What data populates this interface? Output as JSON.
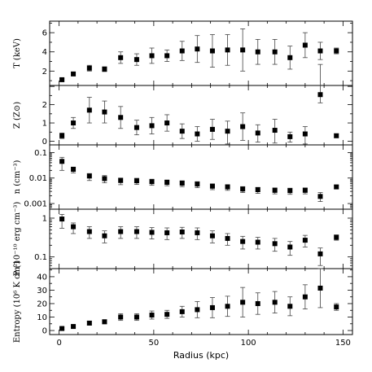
{
  "chart_data": [
    {
      "type": "scatter",
      "ylabel": "T (keV)",
      "yscale": "linear",
      "ylim": [
        0.5,
        7.2
      ],
      "yticks": [
        2,
        4,
        6
      ],
      "ytick_labels": [
        "2",
        "4",
        "6"
      ],
      "xlim": [
        -5,
        155
      ],
      "points": [
        {
          "x": 1.5,
          "y": 1.1,
          "err": [
            0.1,
            0.1
          ]
        },
        {
          "x": 7.5,
          "y": 1.7,
          "err": [
            0.15,
            0.15
          ]
        },
        {
          "x": 16,
          "y": 2.3,
          "err": [
            0.3,
            0.3
          ]
        },
        {
          "x": 24,
          "y": 2.2,
          "err": [
            0.25,
            0.25
          ]
        },
        {
          "x": 32.5,
          "y": 3.4,
          "err": [
            0.6,
            0.6
          ]
        },
        {
          "x": 41,
          "y": 3.2,
          "err": [
            0.6,
            0.6
          ]
        },
        {
          "x": 49,
          "y": 3.6,
          "err": [
            0.8,
            0.8
          ]
        },
        {
          "x": 57,
          "y": 3.6,
          "err": [
            0.6,
            0.6
          ]
        },
        {
          "x": 65,
          "y": 4.1,
          "err": [
            1.0,
            1.0
          ]
        },
        {
          "x": 73,
          "y": 4.3,
          "err": [
            1.4,
            1.4
          ]
        },
        {
          "x": 81,
          "y": 4.1,
          "err": [
            1.7,
            1.7
          ]
        },
        {
          "x": 89,
          "y": 4.2,
          "err": [
            1.6,
            1.6
          ]
        },
        {
          "x": 97,
          "y": 4.2,
          "err": [
            2.2,
            2.2
          ]
        },
        {
          "x": 105,
          "y": 4.0,
          "err": [
            1.3,
            1.3
          ]
        },
        {
          "x": 114,
          "y": 4.0,
          "err": [
            1.3,
            1.3
          ]
        },
        {
          "x": 122,
          "y": 3.4,
          "err": [
            1.2,
            1.2
          ]
        },
        {
          "x": 130,
          "y": 4.7,
          "err": [
            1.3,
            1.3
          ]
        },
        {
          "x": 138,
          "y": 4.1,
          "err": [
            0.9,
            0.9
          ]
        },
        {
          "x": 146.5,
          "y": 4.1,
          "err": [
            0.3,
            0.3
          ]
        }
      ]
    },
    {
      "type": "scatter",
      "ylabel": "Z (Z⊙)",
      "yscale": "linear",
      "ylim": [
        -0.2,
        3.05
      ],
      "yticks": [
        0,
        1,
        2
      ],
      "ytick_labels": [
        "0",
        "1",
        "2"
      ],
      "xlim": [
        -5,
        155
      ],
      "points": [
        {
          "x": 1.5,
          "y": 0.3,
          "err": [
            0.15,
            0.15
          ]
        },
        {
          "x": 7.5,
          "y": 1.0,
          "err": [
            0.3,
            0.3
          ]
        },
        {
          "x": 16,
          "y": 1.7,
          "err": [
            0.7,
            0.7
          ]
        },
        {
          "x": 24,
          "y": 1.6,
          "err": [
            0.6,
            0.6
          ]
        },
        {
          "x": 32.5,
          "y": 1.3,
          "err": [
            0.6,
            0.6
          ]
        },
        {
          "x": 41,
          "y": 0.75,
          "err": [
            0.4,
            0.4
          ]
        },
        {
          "x": 49,
          "y": 0.85,
          "err": [
            0.45,
            0.45
          ]
        },
        {
          "x": 57,
          "y": 1.0,
          "err": [
            0.45,
            0.45
          ]
        },
        {
          "x": 65,
          "y": 0.55,
          "err": [
            0.4,
            0.4
          ]
        },
        {
          "x": 73,
          "y": 0.4,
          "err": [
            0.4,
            0.4
          ]
        },
        {
          "x": 81,
          "y": 0.65,
          "err": [
            0.55,
            0.55
          ]
        },
        {
          "x": 89,
          "y": 0.55,
          "err": [
            0.7,
            0.55
          ]
        },
        {
          "x": 97,
          "y": 0.8,
          "err": [
            0.75,
            0.75
          ]
        },
        {
          "x": 105,
          "y": 0.45,
          "err": [
            0.5,
            0.45
          ]
        },
        {
          "x": 114,
          "y": 0.6,
          "err": [
            0.7,
            0.6
          ]
        },
        {
          "x": 122,
          "y": 0.25,
          "err": [
            0.3,
            0.25
          ]
        },
        {
          "x": 130,
          "y": 0.4,
          "err": [
            0.55,
            0.4
          ]
        },
        {
          "x": 138,
          "y": 2.55,
          "err": [
            0.45,
            1.65
          ]
        },
        {
          "x": 146.5,
          "y": 0.3,
          "err": [
            0.1,
            0.1
          ]
        }
      ]
    },
    {
      "type": "scatter",
      "ylabel": "n (cm⁻³)",
      "yscale": "log",
      "ylim": [
        0.0006,
        0.2
      ],
      "yticks": [
        0.001,
        0.01,
        0.1
      ],
      "ytick_labels": [
        "0.001",
        "0.01",
        "0.1"
      ],
      "xlim": [
        -5,
        155
      ],
      "points": [
        {
          "x": 1.5,
          "y": 0.045,
          "err": [
            0.025,
            0.02
          ]
        },
        {
          "x": 7.5,
          "y": 0.022,
          "err": [
            0.006,
            0.005
          ]
        },
        {
          "x": 16,
          "y": 0.012,
          "err": [
            0.004,
            0.003
          ]
        },
        {
          "x": 24,
          "y": 0.0095,
          "err": [
            0.003,
            0.003
          ]
        },
        {
          "x": 32.5,
          "y": 0.008,
          "err": [
            0.0025,
            0.002
          ]
        },
        {
          "x": 41,
          "y": 0.0078,
          "err": [
            0.0022,
            0.002
          ]
        },
        {
          "x": 49,
          "y": 0.0072,
          "err": [
            0.002,
            0.0018
          ]
        },
        {
          "x": 57,
          "y": 0.0068,
          "err": [
            0.0018,
            0.0016
          ]
        },
        {
          "x": 65,
          "y": 0.0063,
          "err": [
            0.0017,
            0.0015
          ]
        },
        {
          "x": 73,
          "y": 0.0058,
          "err": [
            0.0016,
            0.0014
          ]
        },
        {
          "x": 81,
          "y": 0.0048,
          "err": [
            0.0013,
            0.0011
          ]
        },
        {
          "x": 89,
          "y": 0.0045,
          "err": [
            0.0012,
            0.001
          ]
        },
        {
          "x": 97,
          "y": 0.0037,
          "err": [
            0.001,
            0.0009
          ]
        },
        {
          "x": 105,
          "y": 0.0035,
          "err": [
            0.001,
            0.0008
          ]
        },
        {
          "x": 114,
          "y": 0.0033,
          "err": [
            0.0009,
            0.0008
          ]
        },
        {
          "x": 122,
          "y": 0.0032,
          "err": [
            0.0009,
            0.0008
          ]
        },
        {
          "x": 130,
          "y": 0.0033,
          "err": [
            0.0009,
            0.0008
          ]
        },
        {
          "x": 138,
          "y": 0.0019,
          "err": [
            0.0007,
            0.0008
          ]
        },
        {
          "x": 146.5,
          "y": 0.0045,
          "err": [
            0.0007,
            0.0006
          ]
        }
      ]
    },
    {
      "type": "scatter",
      "ylabel": "P (10⁻¹⁰ erg cm⁻³)",
      "yscale": "log",
      "ylim": [
        0.05,
        1.7
      ],
      "yticks": [
        0.1,
        1
      ],
      "ytick_labels": [
        "0.1",
        "1"
      ],
      "xlim": [
        -5,
        155
      ],
      "points": [
        {
          "x": 1.5,
          "y": 0.95,
          "err": [
            0.4,
            0.3
          ]
        },
        {
          "x": 7.5,
          "y": 0.6,
          "err": [
            0.2,
            0.15
          ]
        },
        {
          "x": 16,
          "y": 0.45,
          "err": [
            0.15,
            0.15
          ]
        },
        {
          "x": 24,
          "y": 0.35,
          "err": [
            0.12,
            0.12
          ]
        },
        {
          "x": 32.5,
          "y": 0.45,
          "err": [
            0.15,
            0.15
          ]
        },
        {
          "x": 41,
          "y": 0.45,
          "err": [
            0.15,
            0.15
          ]
        },
        {
          "x": 49,
          "y": 0.43,
          "err": [
            0.14,
            0.14
          ]
        },
        {
          "x": 57,
          "y": 0.42,
          "err": [
            0.14,
            0.14
          ]
        },
        {
          "x": 65,
          "y": 0.44,
          "err": [
            0.14,
            0.14
          ]
        },
        {
          "x": 73,
          "y": 0.42,
          "err": [
            0.14,
            0.14
          ]
        },
        {
          "x": 81,
          "y": 0.35,
          "err": [
            0.12,
            0.12
          ]
        },
        {
          "x": 89,
          "y": 0.3,
          "err": [
            0.1,
            0.1
          ]
        },
        {
          "x": 97,
          "y": 0.25,
          "err": [
            0.09,
            0.09
          ]
        },
        {
          "x": 105,
          "y": 0.24,
          "err": [
            0.08,
            0.08
          ]
        },
        {
          "x": 114,
          "y": 0.22,
          "err": [
            0.08,
            0.08
          ]
        },
        {
          "x": 122,
          "y": 0.18,
          "err": [
            0.07,
            0.07
          ]
        },
        {
          "x": 130,
          "y": 0.27,
          "err": [
            0.09,
            0.09
          ]
        },
        {
          "x": 138,
          "y": 0.12,
          "err": [
            0.06,
            0.05
          ]
        },
        {
          "x": 146.5,
          "y": 0.32,
          "err": [
            0.05,
            0.05
          ]
        }
      ]
    },
    {
      "type": "scatter",
      "ylabel": "Entropy (10⁶ K cm²)",
      "yscale": "linear",
      "ylim": [
        -3,
        46
      ],
      "yticks": [
        0,
        10,
        20,
        30,
        40
      ],
      "ytick_labels": [
        "0",
        "10",
        "20",
        "30",
        "40"
      ],
      "xlim": [
        -5,
        155
      ],
      "xlabel": "Radius (kpc)",
      "xticks": [
        0,
        50,
        100,
        150
      ],
      "xtick_labels": [
        "0",
        "50",
        "100",
        "150"
      ],
      "points": [
        {
          "x": 1.5,
          "y": 1.5,
          "err": [
            0.7,
            0.7
          ]
        },
        {
          "x": 7.5,
          "y": 3.0,
          "err": [
            0.8,
            0.8
          ]
        },
        {
          "x": 16,
          "y": 5.5,
          "err": [
            1.3,
            1.3
          ]
        },
        {
          "x": 24,
          "y": 6.5,
          "err": [
            1.5,
            1.5
          ]
        },
        {
          "x": 32.5,
          "y": 10.0,
          "err": [
            2.5,
            2.5
          ]
        },
        {
          "x": 41,
          "y": 10.0,
          "err": [
            2.5,
            2.5
          ]
        },
        {
          "x": 49,
          "y": 11.5,
          "err": [
            3.0,
            3.0
          ]
        },
        {
          "x": 57,
          "y": 12.0,
          "err": [
            3.0,
            3.0
          ]
        },
        {
          "x": 65,
          "y": 14.0,
          "err": [
            4.0,
            4.0
          ]
        },
        {
          "x": 73,
          "y": 15.5,
          "err": [
            6.0,
            6.0
          ]
        },
        {
          "x": 81,
          "y": 17.0,
          "err": [
            7.5,
            7.5
          ]
        },
        {
          "x": 89,
          "y": 18.0,
          "err": [
            7.5,
            7.5
          ]
        },
        {
          "x": 97,
          "y": 21.0,
          "err": [
            11.0,
            11.0
          ]
        },
        {
          "x": 105,
          "y": 20.0,
          "err": [
            8.0,
            8.0
          ]
        },
        {
          "x": 114,
          "y": 21.0,
          "err": [
            8.0,
            8.0
          ]
        },
        {
          "x": 122,
          "y": 18.0,
          "err": [
            7.0,
            7.0
          ]
        },
        {
          "x": 130,
          "y": 25.0,
          "err": [
            9.0,
            9.0
          ]
        },
        {
          "x": 138,
          "y": 31.5,
          "err": [
            14.5,
            14.5
          ]
        },
        {
          "x": 146.5,
          "y": 17.5,
          "err": [
            2.5,
            2.5
          ]
        }
      ]
    }
  ]
}
